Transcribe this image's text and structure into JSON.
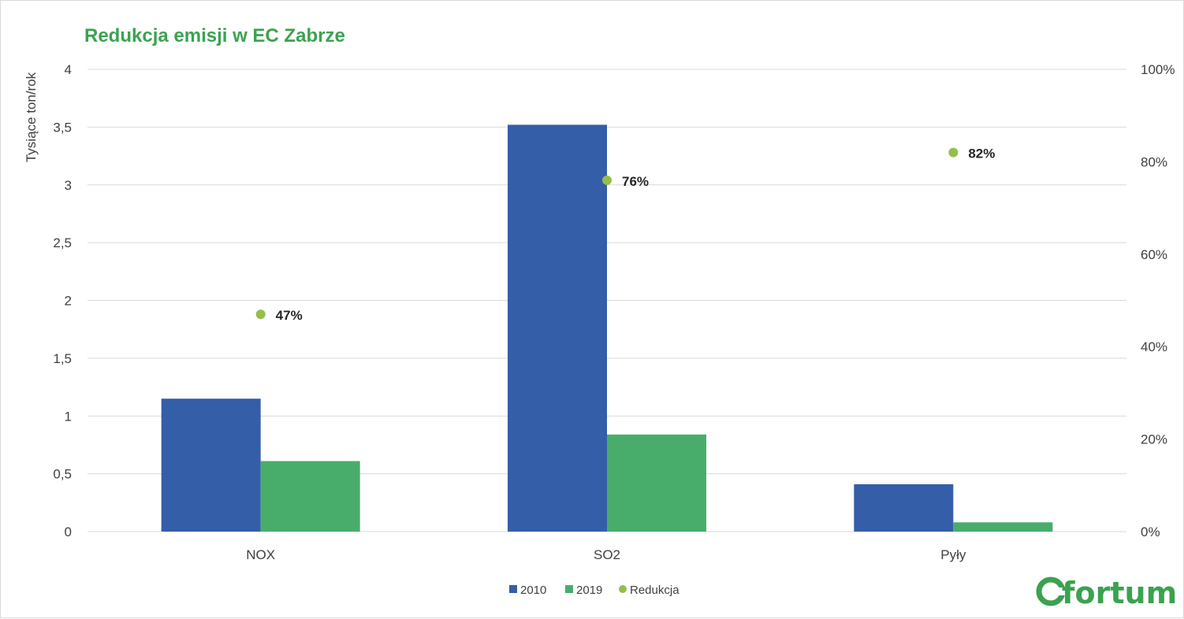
{
  "colors": {
    "title": "#3aa350",
    "series_2010": "#355ea8",
    "series_2019": "#48ad6b",
    "reduction_marker": "#94bf4a",
    "gridline": "#d9d9d9",
    "logo": "#3ba250"
  },
  "chart_data": {
    "type": "bar",
    "title": "Redukcja emisji w EC Zabrze",
    "ylabel": "Tysiące ton/rok",
    "xlabel": "",
    "categories": [
      "NOX",
      "SO2",
      "Pyły"
    ],
    "ylim": [
      0,
      4
    ],
    "y_ticks": [
      "0",
      "0,5",
      "1",
      "1,5",
      "2",
      "2,5",
      "3",
      "3,5",
      "4"
    ],
    "y_tick_values": [
      0,
      0.5,
      1,
      1.5,
      2,
      2.5,
      3,
      3.5,
      4
    ],
    "y2lim": [
      0,
      1
    ],
    "y2_ticks": [
      "0%",
      "20%",
      "40%",
      "60%",
      "80%",
      "100%"
    ],
    "y2_tick_values": [
      0,
      0.2,
      0.4,
      0.6,
      0.8,
      1.0
    ],
    "series": [
      {
        "name": "2010",
        "type": "bar",
        "axis": "left",
        "values": [
          1.15,
          3.52,
          0.41
        ]
      },
      {
        "name": "2019",
        "type": "bar",
        "axis": "left",
        "values": [
          0.61,
          0.84,
          0.08
        ]
      },
      {
        "name": "Redukcja",
        "type": "scatter",
        "axis": "right",
        "values": [
          0.47,
          0.76,
          0.82
        ],
        "labels": [
          "47%",
          "76%",
          "82%"
        ]
      }
    ],
    "grid": true,
    "legend_position": "bottom"
  },
  "logo": {
    "text": "fortum"
  }
}
